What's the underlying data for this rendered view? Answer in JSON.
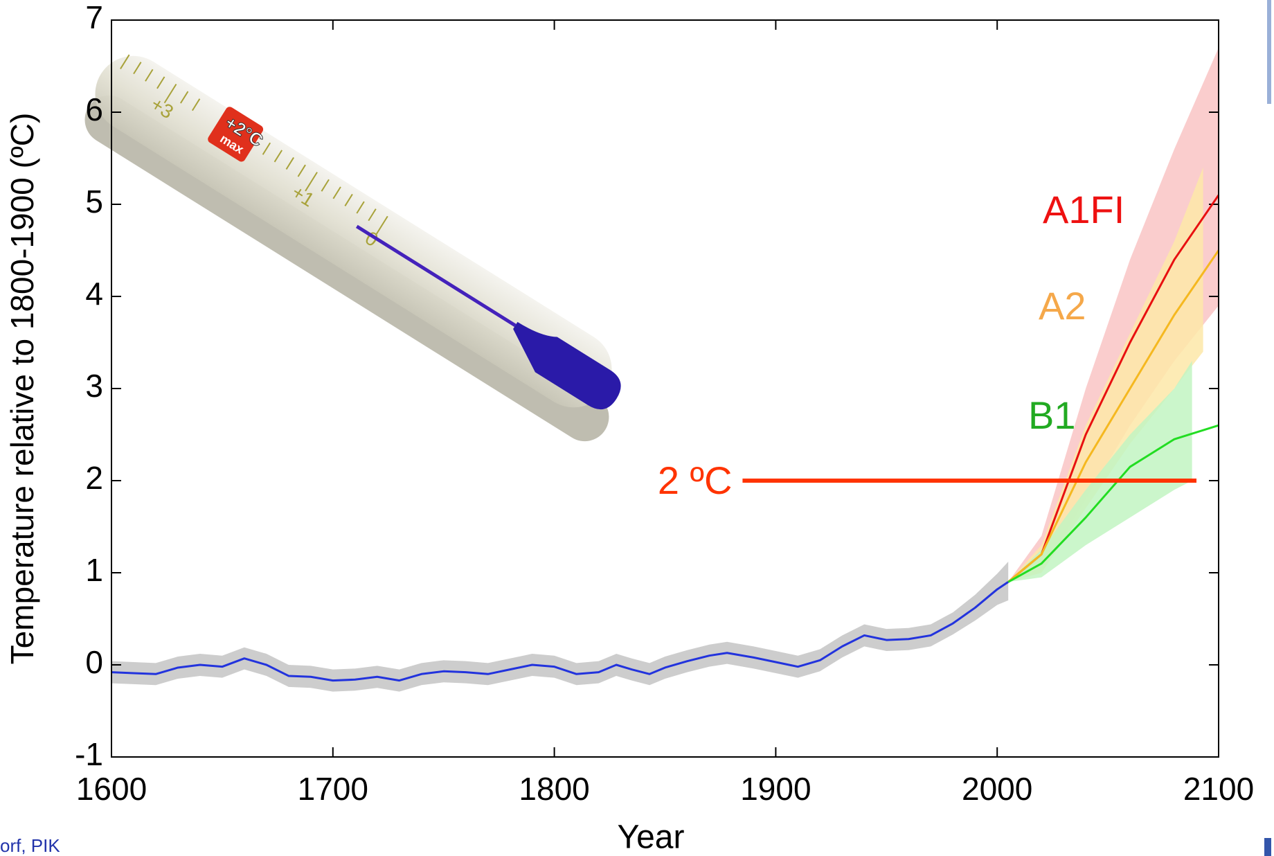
{
  "chart_data": {
    "type": "line",
    "xlabel": "Year",
    "ylabel": "Temperature relative to 1800-1900 (ºC)",
    "xlim": [
      1600,
      2100
    ],
    "xticks": [
      1600,
      1700,
      1800,
      1900,
      2000,
      2100
    ],
    "ylim": [
      -1,
      7
    ],
    "yticks": [
      -1,
      0,
      1,
      2,
      3,
      4,
      5,
      6,
      7
    ],
    "series": [
      {
        "color": "#2233dd",
        "band_color": "#c4c4c4",
        "x": [
          1600,
          1610,
          1620,
          1630,
          1640,
          1650,
          1660,
          1670,
          1680,
          1690,
          1700,
          1710,
          1720,
          1730,
          1740,
          1750,
          1760,
          1770,
          1780,
          1790,
          1800,
          1810,
          1820,
          1828,
          1835,
          1843,
          1850,
          1860,
          1870,
          1878,
          1890,
          1900,
          1910,
          1920,
          1930,
          1940,
          1950,
          1960,
          1970,
          1980,
          1990,
          2000,
          2005
        ],
        "values": [
          -0.08,
          -0.09,
          -0.1,
          -0.03,
          0.0,
          -0.02,
          0.07,
          0.0,
          -0.12,
          -0.13,
          -0.17,
          -0.16,
          -0.13,
          -0.17,
          -0.1,
          -0.07,
          -0.08,
          -0.1,
          -0.05,
          0.0,
          -0.02,
          -0.1,
          -0.08,
          0.0,
          -0.05,
          -0.1,
          -0.03,
          0.04,
          0.1,
          0.13,
          0.08,
          0.03,
          -0.02,
          0.05,
          0.2,
          0.32,
          0.27,
          0.28,
          0.32,
          0.45,
          0.62,
          0.82,
          0.9
        ],
        "band_x": [
          1600,
          1610,
          1620,
          1630,
          1640,
          1650,
          1660,
          1670,
          1680,
          1690,
          1700,
          1710,
          1720,
          1730,
          1740,
          1750,
          1760,
          1770,
          1780,
          1790,
          1800,
          1810,
          1820,
          1828,
          1835,
          1843,
          1850,
          1860,
          1870,
          1878,
          1890,
          1900,
          1910,
          1920,
          1930,
          1940,
          1950,
          1960,
          1970,
          1980,
          1990,
          2000,
          2005
        ],
        "lower": [
          -0.2,
          -0.21,
          -0.22,
          -0.15,
          -0.12,
          -0.14,
          -0.05,
          -0.12,
          -0.24,
          -0.25,
          -0.29,
          -0.28,
          -0.25,
          -0.29,
          -0.22,
          -0.19,
          -0.2,
          -0.22,
          -0.17,
          -0.12,
          -0.14,
          -0.22,
          -0.2,
          -0.12,
          -0.17,
          -0.22,
          -0.15,
          -0.08,
          -0.02,
          0.01,
          -0.04,
          -0.09,
          -0.14,
          -0.07,
          0.08,
          0.2,
          0.15,
          0.16,
          0.2,
          0.33,
          0.48,
          0.65,
          0.7
        ],
        "upper": [
          0.04,
          0.03,
          0.02,
          0.09,
          0.12,
          0.1,
          0.19,
          0.12,
          0.0,
          -0.01,
          -0.05,
          -0.04,
          -0.01,
          -0.05,
          0.02,
          0.05,
          0.04,
          0.02,
          0.07,
          0.12,
          0.1,
          0.02,
          0.04,
          0.12,
          0.07,
          0.02,
          0.09,
          0.16,
          0.22,
          0.25,
          0.2,
          0.15,
          0.1,
          0.17,
          0.32,
          0.44,
          0.39,
          0.4,
          0.44,
          0.57,
          0.76,
          0.99,
          1.12
        ]
      },
      {
        "name": "A1FI",
        "color": "#e81010",
        "band_color": "#f9c4c4",
        "label_color": "#ee1111",
        "x": [
          2005,
          2020,
          2040,
          2060,
          2080,
          2100
        ],
        "values": [
          0.9,
          1.2,
          2.5,
          3.5,
          4.4,
          5.1
        ],
        "band_x": [
          2005,
          2020,
          2040,
          2060,
          2080,
          2100
        ],
        "lower": [
          0.9,
          1.0,
          1.8,
          2.6,
          3.3,
          3.9
        ],
        "upper": [
          0.9,
          1.4,
          3.0,
          4.4,
          5.6,
          6.7
        ]
      },
      {
        "name": "A2",
        "color": "#f5b820",
        "band_color": "#fde8a8",
        "label_color": "#f5a84a",
        "x": [
          2005,
          2020,
          2040,
          2060,
          2080,
          2100
        ],
        "values": [
          0.9,
          1.2,
          2.2,
          3.0,
          3.8,
          4.5
        ],
        "band_x": [
          2005,
          2020,
          2040,
          2060,
          2080,
          2093
        ],
        "lower": [
          0.9,
          1.0,
          1.7,
          2.4,
          3.0,
          3.4
        ],
        "upper": [
          0.9,
          1.3,
          2.6,
          3.6,
          4.6,
          5.4
        ]
      },
      {
        "name": "B1",
        "color": "#22dd22",
        "band_color": "#c2f5c2",
        "label_color": "#22aa22",
        "x": [
          2005,
          2020,
          2040,
          2060,
          2080,
          2100
        ],
        "values": [
          0.9,
          1.1,
          1.6,
          2.15,
          2.45,
          2.6
        ],
        "band_x": [
          2005,
          2020,
          2040,
          2060,
          2080,
          2088
        ],
        "lower": [
          0.9,
          0.95,
          1.3,
          1.6,
          1.9,
          2.0
        ],
        "upper": [
          0.9,
          1.25,
          1.9,
          2.5,
          3.0,
          3.3
        ]
      }
    ],
    "threshold": {
      "label": "2 ºC",
      "value": 2,
      "x": [
        1885,
        2090
      ],
      "color": "#ff3300"
    },
    "footer": "orf, PIK",
    "illustration": {
      "scale_labels": [
        "+3",
        "+1",
        "0"
      ],
      "badge": "+2°C",
      "badge_sub": "max"
    }
  }
}
